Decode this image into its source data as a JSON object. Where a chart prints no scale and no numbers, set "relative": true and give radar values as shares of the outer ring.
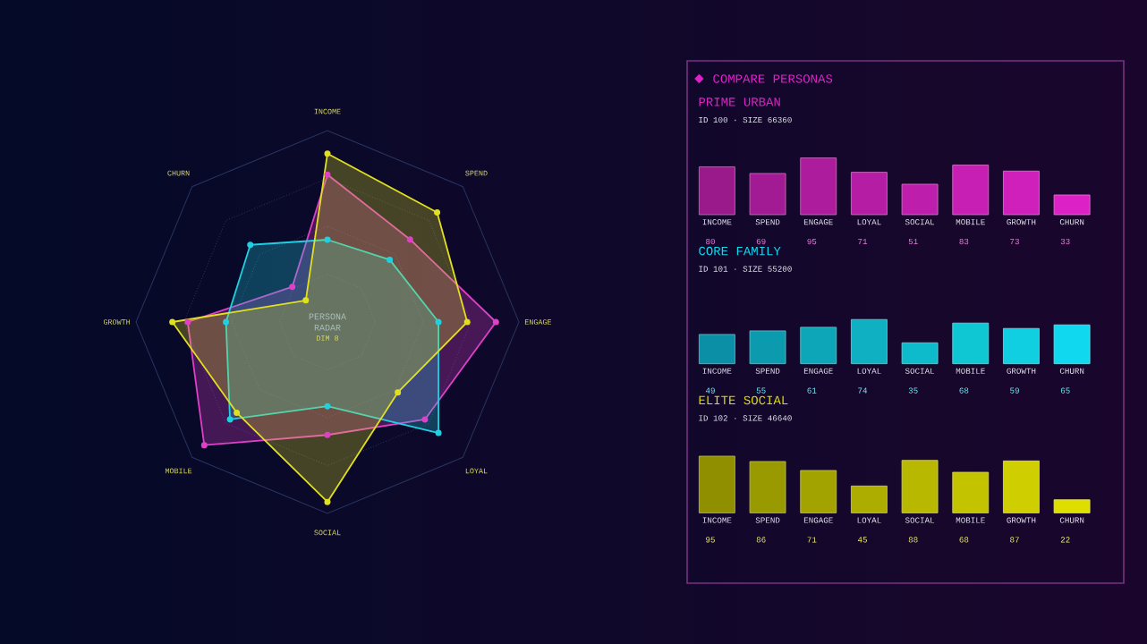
{
  "chart_data": [
    {
      "type": "radar",
      "title": "PERSONA RADAR",
      "subtitle": "DIM 8",
      "categories": [
        "INCOME",
        "SPEND",
        "ENGAGE",
        "LOYAL",
        "SOCIAL",
        "MOBILE",
        "GROWTH",
        "CHURN"
      ],
      "relative": true,
      "grid": true,
      "marker": "circle",
      "series": [
        {
          "color": "#e040c8",
          "values": [
            0.77,
            0.61,
            0.88,
            0.72,
            0.59,
            0.91,
            0.73,
            0.26
          ]
        },
        {
          "color": "#20d0e0",
          "values": [
            0.43,
            0.46,
            0.58,
            0.82,
            0.44,
            0.72,
            0.53,
            0.57
          ]
        },
        {
          "color": "#e0e020",
          "values": [
            0.88,
            0.81,
            0.73,
            0.52,
            0.94,
            0.67,
            0.81,
            0.16
          ]
        }
      ]
    },
    {
      "type": "bar",
      "title": "PRIME URBAN",
      "subtitle": "ID 100 · SIZE 66360",
      "annotations": [
        "COMPARE PERSONAS"
      ],
      "categories": [
        "INCOME",
        "SPEND",
        "ENGAGE",
        "LOYAL",
        "SOCIAL",
        "MOBILE",
        "GROWTH",
        "CHURN"
      ],
      "values": [
        80,
        69,
        95,
        71,
        51,
        83,
        73,
        33
      ],
      "colors": [
        "#9a1a8c",
        "#a31b94",
        "#ac1c9c",
        "#b51da4",
        "#be1eac",
        "#c71fb4",
        "#d020bc",
        "#dc22c6"
      ],
      "data_labels": true
    },
    {
      "type": "bar",
      "title": "CORE FAMILY",
      "subtitle": "ID 101 · SIZE 55200",
      "categories": [
        "INCOME",
        "SPEND",
        "ENGAGE",
        "LOYAL",
        "SOCIAL",
        "MOBILE",
        "GROWTH",
        "CHURN"
      ],
      "values": [
        49,
        55,
        61,
        74,
        35,
        68,
        59,
        65
      ],
      "colors": [
        "#0b8fa6",
        "#0c9aaf",
        "#0da5b8",
        "#0eb0c1",
        "#0ebbca",
        "#0fc6d3",
        "#0fcfe0",
        "#10d8ee"
      ],
      "data_labels": true
    },
    {
      "type": "bar",
      "title": "ELITE SOCIAL",
      "subtitle": "ID 102 · SIZE 46640",
      "categories": [
        "INCOME",
        "SPEND",
        "ENGAGE",
        "LOYAL",
        "SOCIAL",
        "MOBILE",
        "GROWTH",
        "CHURN"
      ],
      "values": [
        95,
        86,
        71,
        45,
        88,
        68,
        87,
        22
      ],
      "colors": [
        "#8f8f00",
        "#999900",
        "#a3a300",
        "#adad00",
        "#b8b800",
        "#c3c300",
        "#cece00",
        "#dede00"
      ],
      "data_labels": true
    }
  ]
}
